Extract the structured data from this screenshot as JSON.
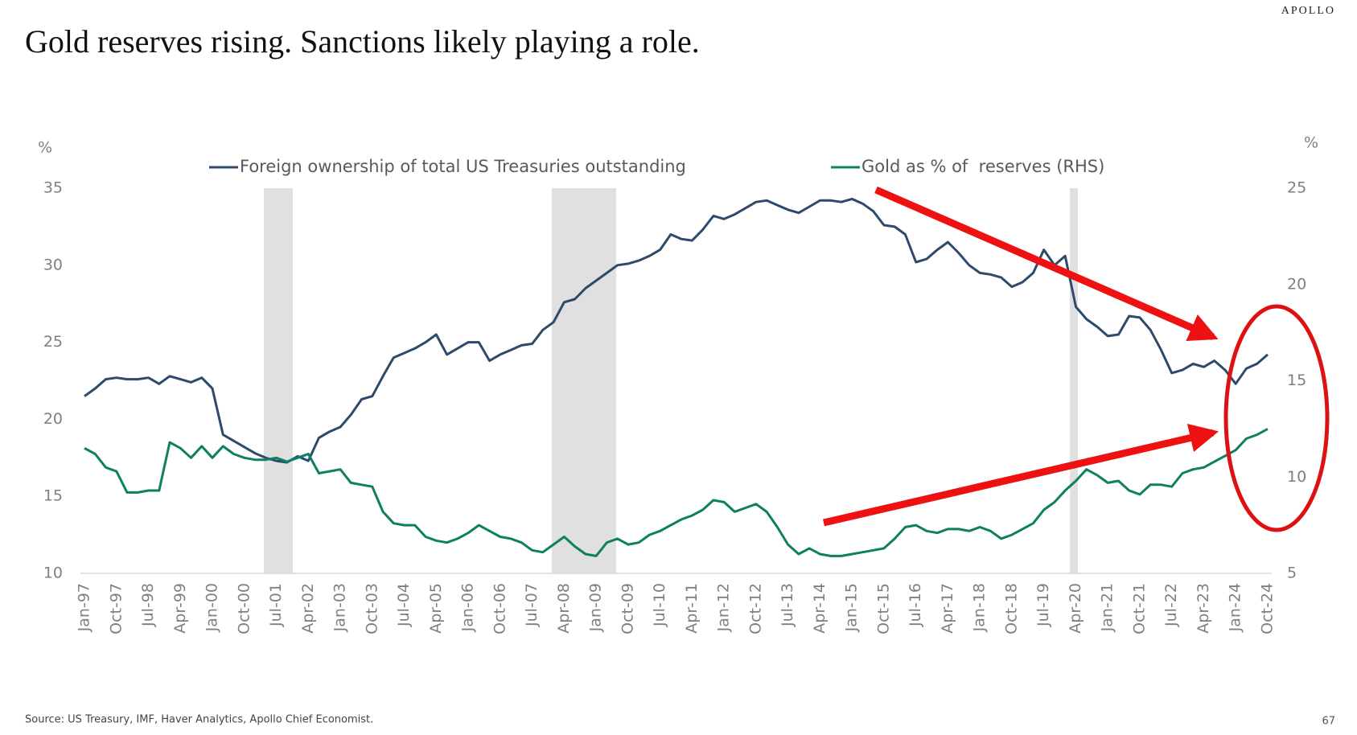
{
  "header": {
    "brand": "APOLLO",
    "page_number": "67"
  },
  "chart_data": {
    "type": "line",
    "title": "Gold reserves rising. Sanctions likely playing a role.",
    "y_label": "%",
    "y2_label": "%",
    "source": "Source: US Treasury, IMF, Haver Analytics, Apollo Chief Economist.",
    "categories": [
      "Jan-97",
      null,
      null,
      "Oct-97",
      null,
      null,
      "Jul-98",
      null,
      null,
      "Apr-99",
      null,
      null,
      "Jan-00",
      null,
      null,
      "Oct-00",
      null,
      null,
      "Jul-01",
      null,
      null,
      "Apr-02",
      null,
      null,
      "Jan-03",
      null,
      null,
      "Oct-03",
      null,
      null,
      "Jul-04",
      null,
      null,
      "Apr-05",
      null,
      null,
      "Jan-06",
      null,
      null,
      "Oct-06",
      null,
      null,
      "Jul-07",
      null,
      null,
      "Apr-08",
      null,
      null,
      "Jan-09",
      null,
      null,
      "Oct-09",
      null,
      null,
      "Jul-10",
      null,
      null,
      "Apr-11",
      null,
      null,
      "Jan-12",
      null,
      null,
      "Oct-12",
      null,
      null,
      "Jul-13",
      null,
      null,
      "Apr-14",
      null,
      null,
      "Jan-15",
      null,
      null,
      "Oct-15",
      null,
      null,
      "Jul-16",
      null,
      null,
      "Apr-17",
      null,
      null,
      "Jan-18",
      null,
      null,
      "Oct-18",
      null,
      null,
      "Jul-19",
      null,
      null,
      "Apr-20",
      null,
      null,
      "Jan-21",
      null,
      null,
      "Oct-21",
      null,
      null,
      "Jul-22",
      null,
      null,
      "Apr-23",
      null,
      null,
      "Jan-24",
      null,
      null,
      "Oct-24"
    ],
    "series": [
      {
        "name": "Foreign ownership of total US Treasuries outstanding",
        "color": "#2e4a6b",
        "axis": "y",
        "values": [
          21.5,
          22.0,
          22.6,
          22.7,
          22.6,
          22.6,
          22.7,
          22.3,
          22.8,
          22.6,
          22.4,
          22.7,
          22.0,
          19.0,
          18.6,
          18.2,
          17.8,
          17.5,
          17.3,
          17.2,
          17.6,
          17.3,
          18.8,
          19.2,
          19.5,
          20.3,
          21.3,
          21.5,
          22.8,
          24.0,
          24.3,
          24.6,
          25.0,
          25.5,
          24.2,
          24.6,
          25.0,
          25.0,
          23.8,
          24.2,
          24.5,
          24.8,
          24.9,
          25.8,
          26.3,
          27.6,
          27.8,
          28.5,
          29.0,
          29.5,
          30.0,
          30.1,
          30.3,
          30.6,
          31.0,
          32.0,
          31.7,
          31.6,
          32.3,
          33.2,
          33.0,
          33.3,
          33.7,
          34.1,
          34.2,
          33.9,
          33.6,
          33.4,
          33.8,
          34.2,
          34.2,
          34.1,
          34.3,
          34.0,
          33.5,
          32.6,
          32.5,
          32.0,
          30.2,
          30.4,
          31.0,
          31.5,
          30.8,
          30.0,
          29.5,
          29.4,
          29.2,
          28.6,
          28.9,
          29.5,
          31.0,
          30.0,
          30.6,
          27.3,
          26.5,
          26.0,
          25.4,
          25.5,
          26.7,
          26.6,
          25.8,
          24.5,
          23.0,
          23.2,
          23.6,
          23.4,
          23.8,
          23.2,
          22.3,
          23.3,
          23.6,
          24.2
        ]
      },
      {
        "name": "Gold as % of  reserves (RHS)",
        "color": "#0e8060",
        "axis": "y2",
        "values": [
          11.5,
          11.2,
          10.5,
          10.3,
          9.2,
          9.2,
          9.3,
          9.3,
          11.8,
          11.5,
          11.0,
          11.6,
          11.0,
          11.6,
          11.2,
          11.0,
          10.9,
          10.9,
          11.0,
          10.8,
          11.0,
          11.2,
          10.2,
          10.3,
          10.4,
          9.7,
          9.6,
          9.5,
          8.2,
          7.6,
          7.5,
          7.5,
          6.9,
          6.7,
          6.6,
          6.8,
          7.1,
          7.5,
          7.2,
          6.9,
          6.8,
          6.6,
          6.2,
          6.1,
          6.5,
          6.9,
          6.4,
          6.0,
          5.9,
          6.6,
          6.8,
          6.5,
          6.6,
          7.0,
          7.2,
          7.5,
          7.8,
          8.0,
          8.3,
          8.8,
          8.7,
          8.2,
          8.4,
          8.6,
          8.2,
          7.4,
          6.5,
          6.0,
          6.3,
          6.0,
          5.9,
          5.9,
          6.0,
          6.1,
          6.2,
          6.3,
          6.8,
          7.4,
          7.5,
          7.2,
          7.1,
          7.3,
          7.3,
          7.2,
          7.4,
          7.2,
          6.8,
          7.0,
          7.3,
          7.6,
          8.3,
          8.7,
          9.3,
          9.8,
          10.4,
          10.1,
          9.7,
          9.8,
          9.3,
          9.1,
          9.6,
          9.6,
          9.5,
          10.2,
          10.4,
          10.5,
          10.8,
          11.1,
          11.4,
          12.0,
          12.2,
          12.5
        ]
      }
    ],
    "ylim": [
      10,
      35
    ],
    "yticks": [
      10,
      15,
      20,
      25,
      30,
      35
    ],
    "y2lim": [
      5,
      25
    ],
    "y2ticks": [
      5,
      10,
      15,
      20,
      25
    ],
    "legend": "top"
  }
}
